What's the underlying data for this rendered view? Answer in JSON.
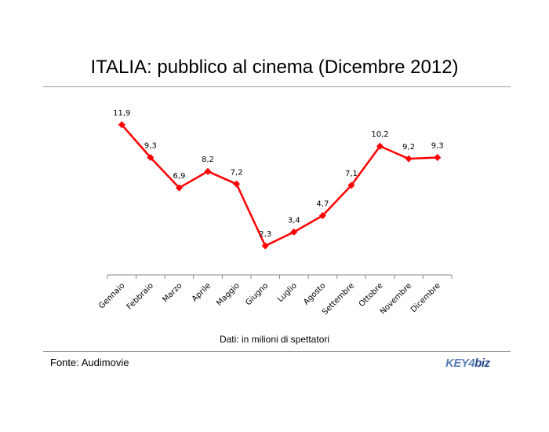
{
  "chart_data": {
    "type": "line",
    "title": "ITALIA: pubblico al cinema (Dicembre 2012)",
    "subtitle": "Dati: in milioni di spettatori",
    "categories": [
      "Gennaio",
      "Febbraio",
      "Marzo",
      "Aprile",
      "Maggio",
      "Giugno",
      "Luglio",
      "Agosto",
      "Settembre",
      "Ottobre",
      "Novembre",
      "Dicembre"
    ],
    "values": [
      11.9,
      9.3,
      6.9,
      8.2,
      7.2,
      2.3,
      3.4,
      4.7,
      7.1,
      10.2,
      9.2,
      9.3
    ],
    "value_labels": [
      "11,9",
      "9,3",
      "6,9",
      "8,2",
      "7,2",
      "2,3",
      "3,4",
      "4,7",
      "7,1",
      "10,2",
      "9,2",
      "9,3"
    ],
    "ylim": [
      0,
      14
    ],
    "grid": false,
    "legend": "none",
    "line_color": "#ff0000"
  },
  "footer": {
    "source": "Fonte: Audimovie",
    "logo_text_a": "KEY4",
    "logo_text_b": "biz"
  }
}
